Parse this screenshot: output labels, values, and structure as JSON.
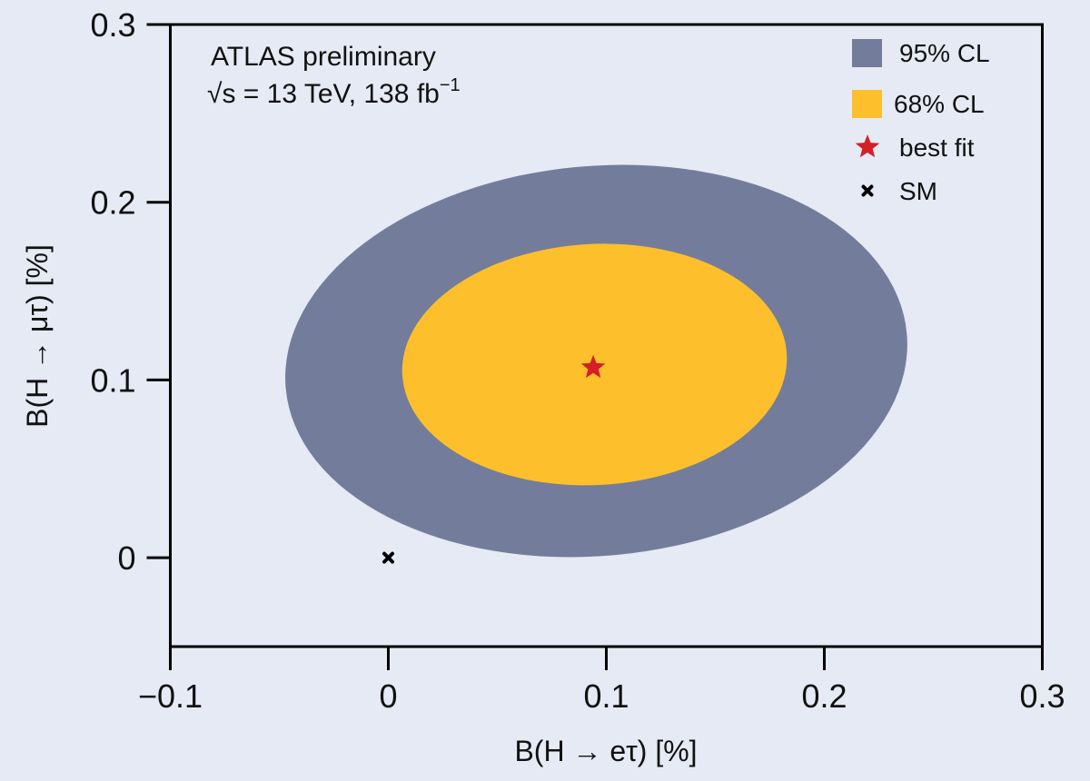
{
  "chart_data": {
    "type": "contour",
    "title": "",
    "xlabel": "B(H → eτ) [%]",
    "ylabel": "B(H → μτ) [%]",
    "xlim": [
      -0.1,
      0.3
    ],
    "ylim": [
      -0.05,
      0.3
    ],
    "xticks": [
      -0.1,
      0,
      0.1,
      0.2,
      0.3
    ],
    "xtick_labels": [
      "−0.1",
      "0",
      "0.1",
      "0.2",
      "0.3"
    ],
    "yticks": [
      0,
      0.1,
      0.2,
      0.3
    ],
    "ytick_labels": [
      "0",
      "0.1",
      "0.2",
      "0.3"
    ],
    "grid": false,
    "annotation": {
      "line1": "ATLAS  preliminary",
      "line2_prefix": "√s = 13 TeV, 138 fb",
      "line2_sup": "−1"
    },
    "contours": [
      {
        "name": "95% CL",
        "color": "#737d9b",
        "center": [
          0.0954,
          0.1107
        ],
        "semi_axes": [
          0.143,
          0.1097
        ],
        "rotation_deg": -5
      },
      {
        "name": "68% CL",
        "color": "#fdbf2b",
        "center": [
          0.0946,
          0.1087
        ],
        "semi_axes": [
          0.0883,
          0.0678
        ],
        "rotation_deg": -3
      }
    ],
    "points": [
      {
        "name": "best fit",
        "x": 0.094,
        "y": 0.107,
        "marker": "star",
        "color": "#d41f26"
      },
      {
        "name": "SM",
        "x": 0,
        "y": 0,
        "marker": "x",
        "color": "#000000"
      }
    ],
    "legend": {
      "placement": "top-right",
      "entries": [
        "95% CL",
        "68% CL",
        "best fit",
        "SM"
      ]
    }
  }
}
